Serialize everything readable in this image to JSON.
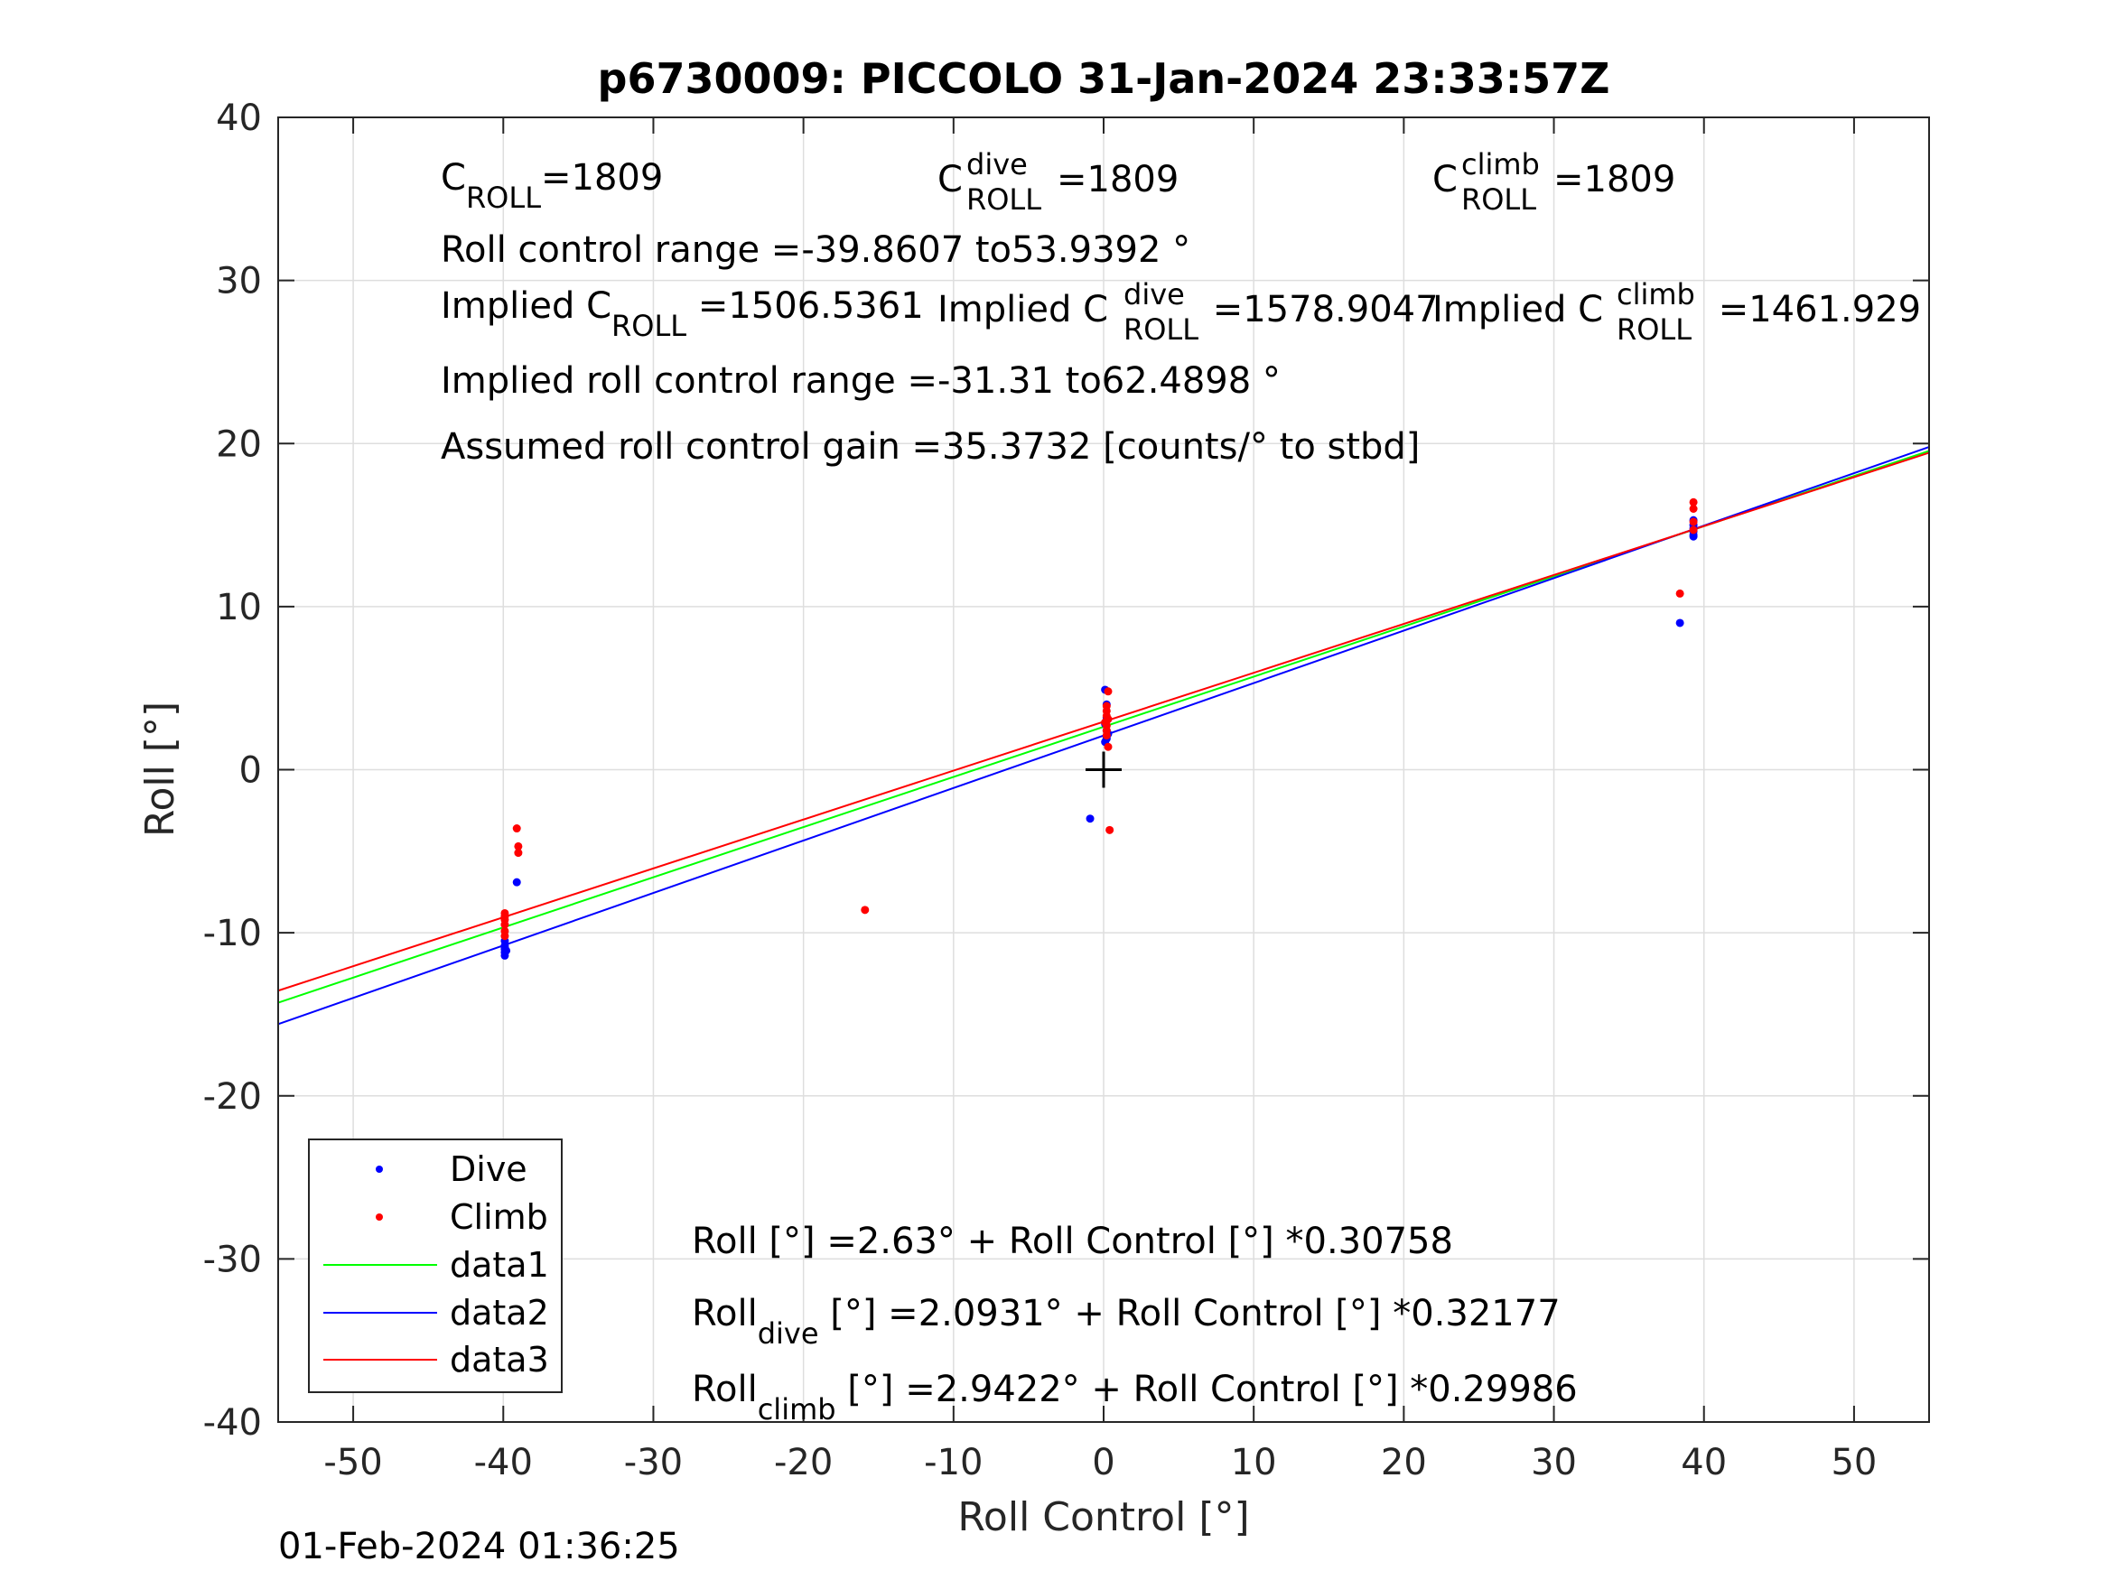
{
  "chart_data": {
    "type": "scatter",
    "title": "p6730009: PICCOLO 31-Jan-2024 23:33:57Z",
    "xlabel": "Roll Control [°]",
    "ylabel": "Roll [°]",
    "xlim": [
      -55,
      55
    ],
    "ylim": [
      -40,
      40
    ],
    "xticks": [
      -50,
      -40,
      -30,
      -20,
      -10,
      0,
      10,
      20,
      30,
      40,
      50
    ],
    "yticks": [
      -40,
      -30,
      -20,
      -10,
      0,
      10,
      20,
      30,
      40
    ],
    "grid": true,
    "legend_position": "bottom-left",
    "colors": {
      "dive": "#0000ff",
      "climb": "#ff0000",
      "data1": "#00ff00",
      "data2": "#0000ff",
      "data3": "#ff0000"
    },
    "series": [
      {
        "name": "Dive",
        "kind": "points",
        "color": "#0000ff",
        "points": [
          [
            -39.9,
            -10.5
          ],
          [
            -39.9,
            -10.8
          ],
          [
            -39.9,
            -11.0
          ],
          [
            -39.9,
            -11.2
          ],
          [
            -39.9,
            -11.4
          ],
          [
            -39.9,
            -10.9
          ],
          [
            -39.8,
            -11.1
          ],
          [
            -39.1,
            -6.9
          ],
          [
            -0.9,
            -3.0
          ],
          [
            0.1,
            1.7
          ],
          [
            0.2,
            2.0
          ],
          [
            0.2,
            2.4
          ],
          [
            0.1,
            2.8
          ],
          [
            0.2,
            3.2
          ],
          [
            0.2,
            4.0
          ],
          [
            0.1,
            4.9
          ],
          [
            0.3,
            2.2
          ],
          [
            0.2,
            1.9
          ],
          [
            38.4,
            9.0
          ],
          [
            39.3,
            14.4
          ],
          [
            39.3,
            14.6
          ],
          [
            39.3,
            14.8
          ],
          [
            39.3,
            15.0
          ],
          [
            39.3,
            15.3
          ],
          [
            39.3,
            14.3
          ]
        ]
      },
      {
        "name": "Climb",
        "kind": "points",
        "color": "#ff0000",
        "points": [
          [
            -39.9,
            -8.8
          ],
          [
            -39.9,
            -9.2
          ],
          [
            -39.9,
            -9.5
          ],
          [
            -39.9,
            -9.9
          ],
          [
            -39.9,
            -10.2
          ],
          [
            -39.9,
            -9.0
          ],
          [
            -39.1,
            -3.6
          ],
          [
            -39.0,
            -4.7
          ],
          [
            -39.0,
            -5.1
          ],
          [
            -15.9,
            -8.6
          ],
          [
            0.2,
            2.1
          ],
          [
            0.2,
            2.4
          ],
          [
            0.2,
            2.7
          ],
          [
            0.2,
            3.0
          ],
          [
            0.2,
            3.3
          ],
          [
            0.2,
            3.6
          ],
          [
            0.2,
            3.9
          ],
          [
            0.3,
            4.8
          ],
          [
            0.3,
            1.4
          ],
          [
            0.4,
            -3.7
          ],
          [
            0.1,
            2.9
          ],
          [
            0.3,
            3.1
          ],
          [
            38.4,
            10.8
          ],
          [
            39.3,
            16.0
          ],
          [
            39.3,
            16.4
          ],
          [
            39.3,
            15.2
          ],
          [
            39.3,
            14.7
          ]
        ]
      },
      {
        "name": "data1",
        "kind": "line",
        "color": "#00ff00",
        "intercept": 2.63,
        "slope": 0.30758,
        "x": [
          -55,
          55
        ]
      },
      {
        "name": "data2",
        "kind": "line",
        "color": "#0000ff",
        "intercept": 2.0931,
        "slope": 0.32177,
        "x": [
          -55,
          55
        ]
      },
      {
        "name": "data3",
        "kind": "line",
        "color": "#ff0000",
        "intercept": 2.9422,
        "slope": 0.29986,
        "x": [
          -55,
          55
        ]
      }
    ],
    "center_marker": {
      "x": 0,
      "y": 0,
      "symbol": "+"
    },
    "annotations": {
      "c_roll": {
        "base": "C",
        "sub": "ROLL",
        "value": "=1809"
      },
      "c_roll_dive": {
        "base": "C",
        "sub": "ROLL",
        "sup": "dive",
        "value": "=1809"
      },
      "c_roll_climb": {
        "base": "C",
        "sub": "ROLL",
        "sup": "climb",
        "value": "=1809"
      },
      "roll_range": "Roll control range =-39.8607 to53.9392 °",
      "implied_c_roll": {
        "prefix": "Implied C",
        "sub": "ROLL",
        "value": " =1506.5361"
      },
      "implied_c_roll_dive": {
        "prefix": "Implied C",
        "sub": "ROLL",
        "sup": "dive",
        "value": " =1578.9047"
      },
      "implied_c_roll_climb": {
        "prefix": "Implied C",
        "sub": "ROLL",
        "sup": "climb",
        "value": " =1461.929"
      },
      "implied_range": "Implied roll control range =-31.31 to62.4898 °",
      "gain": "Assumed roll control gain =35.3732 [counts/° to stbd]",
      "fit_all": "Roll [°] =2.63° + Roll Control [°] *0.30758",
      "fit_dive": {
        "base": "Roll",
        "sub": "dive",
        "rest": " [°] =2.0931° + Roll Control [°] *0.32177"
      },
      "fit_climb": {
        "base": "Roll",
        "sub": "climb",
        "rest": " [°] =2.9422° + Roll Control [°] *0.29986"
      }
    }
  },
  "footer": {
    "timestamp": "01-Feb-2024 01:36:25"
  }
}
